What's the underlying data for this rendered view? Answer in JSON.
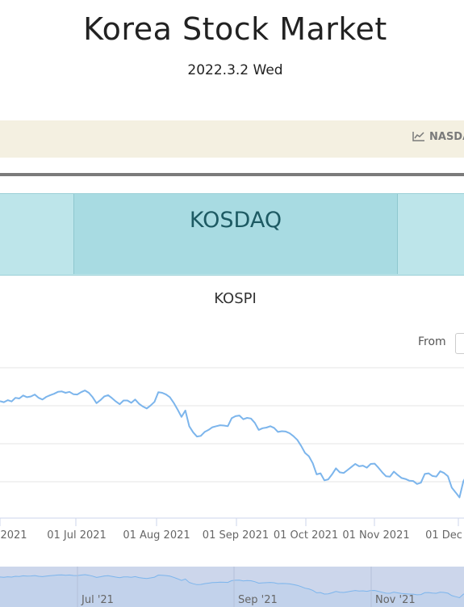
{
  "header": {
    "title": "Korea Stock Market",
    "date": "2022.3.2 Wed"
  },
  "nav": {
    "links": [
      {
        "label": "NASDA",
        "icon": "line-chart-icon"
      }
    ]
  },
  "tabs": {
    "active_label": "KOSDAQ"
  },
  "chart_panel": {
    "range_selector": {
      "from_label": "From"
    }
  },
  "colors": {
    "accent": "#7cb5ec",
    "tab_bg": "#bde5ea",
    "tab_active_bg": "#a8dbe2",
    "nav_bg": "#f4f0e1",
    "navigator_bg": "#ccd6eb"
  },
  "chart_data": {
    "type": "line",
    "title": "KOSPI",
    "x_ticks": [
      "2021",
      "01 Jul 2021",
      "01 Aug 2021",
      "01 Sep 2021",
      "01 Oct 2021",
      "01 Nov 2021",
      "01 Dec"
    ],
    "navigator_ticks": [
      "Jul '21",
      "Sep '21",
      "Nov '21"
    ],
    "grid": true,
    "series": [
      {
        "values": [
          3250,
          3247,
          3253,
          3249,
          3260,
          3258,
          3267,
          3262,
          3264,
          3270,
          3260,
          3255,
          3263,
          3268,
          3272,
          3278,
          3279,
          3275,
          3278,
          3271,
          3270,
          3277,
          3282,
          3275,
          3262,
          3244,
          3253,
          3264,
          3268,
          3259,
          3249,
          3241,
          3252,
          3252,
          3245,
          3255,
          3242,
          3234,
          3228,
          3237,
          3248,
          3277,
          3275,
          3270,
          3262,
          3245,
          3225,
          3203,
          3222,
          3175,
          3157,
          3144,
          3146,
          3158,
          3164,
          3172,
          3175,
          3178,
          3177,
          3175,
          3199,
          3205,
          3207,
          3196,
          3200,
          3198,
          3185,
          3164,
          3169,
          3171,
          3175,
          3170,
          3158,
          3160,
          3159,
          3154,
          3145,
          3134,
          3116,
          3095,
          3085,
          3064,
          3031,
          3034,
          3013,
          3016,
          3031,
          3049,
          3037,
          3035,
          3044,
          3053,
          3062,
          3055,
          3057,
          3051,
          3062,
          3063,
          3051,
          3037,
          3025,
          3024,
          3039,
          3029,
          3020,
          3017,
          3012,
          3011,
          3002,
          3006,
          3032,
          3034,
          3026,
          3024,
          3040,
          3035,
          3025,
          2991,
          2977,
          2962,
          3010,
          3030
        ]
      }
    ],
    "ylim": [
      2900,
      3350
    ]
  }
}
